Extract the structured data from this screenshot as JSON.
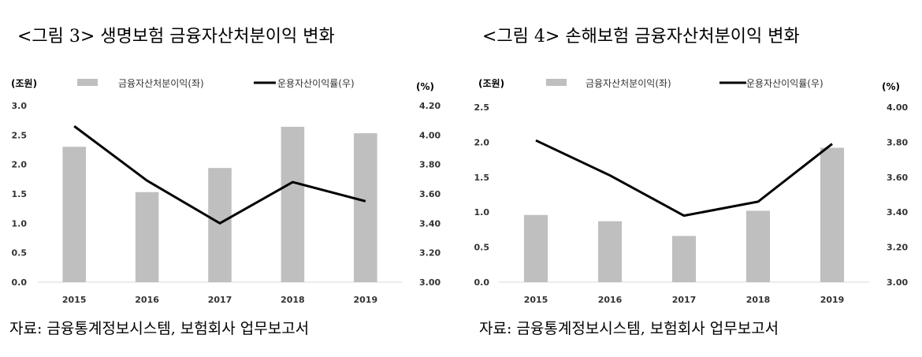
{
  "figures": [
    {
      "title": "<그림 3> 생명보험 금융자산처분이익 변화",
      "source": "자료: 금융통계정보시스템, 보험회사 업무보고서"
    },
    {
      "title": "<그림 4> 손해보험 금융자산처분이익 변화",
      "source": "자료: 금융통계정보시스템, 보험회사 업무보고서"
    }
  ],
  "chart_data": [
    {
      "type": "bar",
      "categories": [
        "2015",
        "2016",
        "2017",
        "2018",
        "2019"
      ],
      "series": [
        {
          "name": "금융자산처분이익(좌)",
          "type": "bar",
          "axis": "left",
          "color": "#bfbfbf",
          "values": [
            2.3,
            1.53,
            1.94,
            2.64,
            2.53
          ]
        },
        {
          "name": "운용자산이익률(우)",
          "type": "line",
          "axis": "right",
          "color": "#000000",
          "values": [
            4.06,
            3.69,
            3.4,
            3.68,
            3.55
          ]
        }
      ],
      "y_left_label": "(조원)",
      "y_right_label": "(%)",
      "y_left_ticks": [
        "0.0",
        "0.5",
        "1.0",
        "1.5",
        "2.0",
        "2.5",
        "3.0"
      ],
      "y_right_ticks": [
        "3.00",
        "3.20",
        "3.40",
        "3.60",
        "3.80",
        "4.00",
        "4.20"
      ],
      "y_left_range": [
        0,
        3.0
      ],
      "y_right_range": [
        3.0,
        4.2
      ],
      "legend_position": "top",
      "grid": false
    },
    {
      "type": "bar",
      "categories": [
        "2015",
        "2016",
        "2017",
        "2018",
        "2019"
      ],
      "series": [
        {
          "name": "금융자산처분이익(좌)",
          "type": "bar",
          "axis": "left",
          "color": "#bfbfbf",
          "values": [
            0.96,
            0.87,
            0.66,
            1.02,
            1.92
          ]
        },
        {
          "name": "운용자산이익률(우)",
          "type": "line",
          "axis": "right",
          "color": "#000000",
          "values": [
            3.81,
            3.61,
            3.38,
            3.46,
            3.79
          ]
        }
      ],
      "y_left_label": "(조원)",
      "y_right_label": "(%)",
      "y_left_ticks": [
        "0.0",
        "0.5",
        "1.0",
        "1.5",
        "2.0",
        "2.5"
      ],
      "y_right_ticks": [
        "3.00",
        "3.20",
        "3.40",
        "3.60",
        "3.80",
        "4.00"
      ],
      "y_left_range": [
        0,
        2.5
      ],
      "y_right_range": [
        3.0,
        4.0
      ],
      "legend_position": "top",
      "grid": false
    }
  ]
}
